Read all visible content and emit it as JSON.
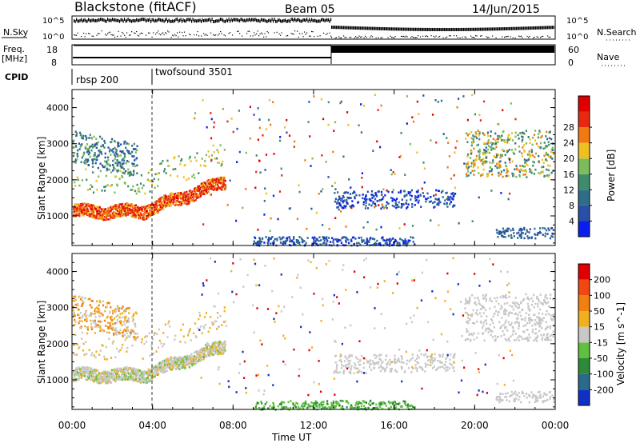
{
  "header": {
    "station": "Blackstone (fitACF)",
    "beam": "Beam 05",
    "date": "14/Jun/2015"
  },
  "params": {
    "nsky_label": "N.Sky",
    "nsearch_label": "N.Search",
    "freq_label": "Freq.",
    "freq_unit": "[MHz]",
    "nave_label": "Nave",
    "cpid_label": "CPID",
    "nsky_ticks": [
      "10^5",
      "10^0"
    ],
    "nsearch_ticks": [
      "10^5",
      "10^0"
    ],
    "freq_ticks": [
      "18",
      "8"
    ],
    "nave_ticks": [
      "60",
      "0"
    ],
    "cpid_segments": [
      "rbsp 200",
      "twofsound 3501"
    ]
  },
  "chart_data": [
    {
      "type": "heatmap",
      "title": "Power",
      "ylabel": "Slant Range [km]",
      "xlabel": "",
      "ylim": [
        180,
        4500
      ],
      "yticks": [
        "1000",
        "2000",
        "3000",
        "4000"
      ],
      "xticks": [
        "00:00",
        "04:00",
        "08:00",
        "12:00",
        "16:00",
        "20:00",
        "00:00"
      ],
      "colorbar_label": "Power [dB]",
      "colorbar_ticks": [
        "4",
        "8",
        "12",
        "16",
        "20",
        "24",
        "28"
      ],
      "colors": [
        "#0a1ef0",
        "#2a4fa8",
        "#2f6e8a",
        "#3f8c6a",
        "#7cbc5a",
        "#f0c020",
        "#f07a10",
        "#e82810",
        "#e00000"
      ]
    },
    {
      "type": "heatmap",
      "title": "Velocity",
      "ylabel": "Slant Range [km]",
      "xlabel": "Time UT",
      "ylim": [
        180,
        4500
      ],
      "yticks": [
        "1000",
        "2000",
        "3000",
        "4000"
      ],
      "xticks": [
        "00:00",
        "04:00",
        "08:00",
        "12:00",
        "16:00",
        "20:00",
        "00:00"
      ],
      "colorbar_label": "Velocity [m s^-1]",
      "colorbar_ticks": [
        "200",
        "100",
        "50",
        "15",
        "-15",
        "-50",
        "-100",
        "-200"
      ],
      "colors": [
        "#1030c8",
        "#2a6a8a",
        "#2c8a3a",
        "#60c040",
        "#c8c8c8",
        "#f0b020",
        "#f08010",
        "#f04810",
        "#e00000"
      ]
    }
  ]
}
